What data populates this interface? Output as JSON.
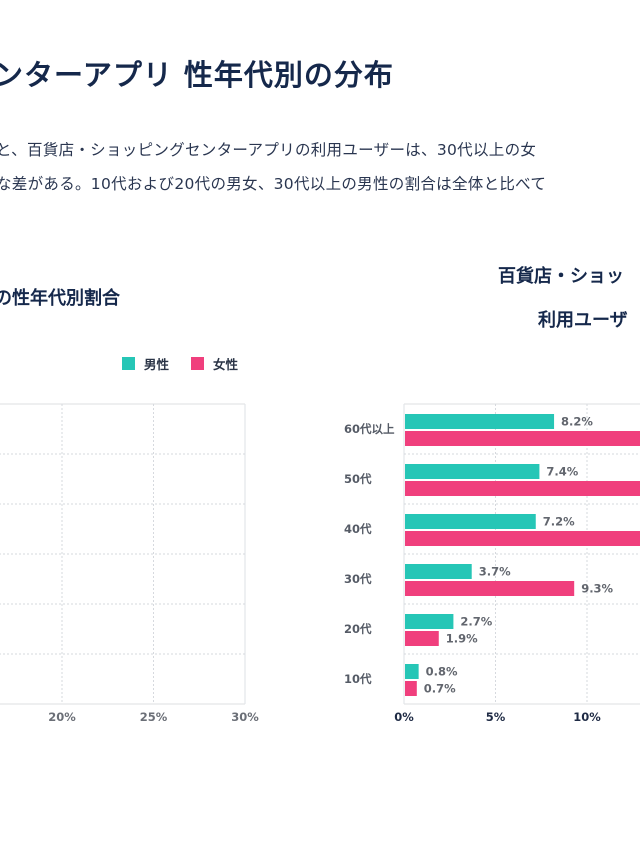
{
  "page": {
    "title": "ンターアプリ 性年代別の分布",
    "description": [
      "と、百貨店・ショッピングセンターアプリの利用ユーザーは、30代以上の女",
      "な差がある。10代および20代の男女、30代以上の男性の割合は全体と比べて"
    ]
  },
  "legend": [
    {
      "label": "男性",
      "color": "#26c6b6"
    },
    {
      "label": "女性",
      "color": "#f03f7d"
    }
  ],
  "colors": {
    "male": "#26c6b6",
    "female": "#f03f7d",
    "title": "#15284b",
    "grid": "#d6d9de"
  },
  "chart_data": [
    {
      "type": "bar",
      "orientation": "horizontal",
      "title": "の性年代別割合",
      "note": "Chart clipped at left edge; bars not visible in screenshot",
      "xlim": [
        0,
        30
      ],
      "x_ticks_visible": [
        "20%",
        "25%",
        "30%"
      ],
      "grid": true,
      "series": [
        {
          "name": "男性",
          "values": null
        },
        {
          "name": "女性",
          "values": null
        }
      ]
    },
    {
      "type": "bar",
      "orientation": "horizontal",
      "title_lines": [
        "百貨店・ショッ",
        "利用ユーザ"
      ],
      "note": "Chart clipped at right edge; female bars for 40代〜60代以上 extend beyond visible area",
      "categories": [
        "60代以上",
        "50代",
        "40代",
        "30代",
        "20代",
        "10代"
      ],
      "x_ticks": [
        "0%",
        "5%",
        "10%"
      ],
      "xlim": [
        0,
        13
      ],
      "grid": true,
      "series": [
        {
          "name": "男性",
          "values": [
            8.2,
            7.4,
            7.2,
            3.7,
            2.7,
            0.8
          ],
          "labels": [
            "8.2%",
            "7.4%",
            "7.2%",
            "3.7%",
            "2.7%",
            "0.8%"
          ]
        },
        {
          "name": "女性",
          "values": [
            null,
            null,
            null,
            9.3,
            1.9,
            0.7
          ],
          "labels": [
            null,
            null,
            null,
            "9.3%",
            "1.9%",
            "0.7%"
          ],
          "clipped": [
            true,
            true,
            true,
            false,
            false,
            false
          ]
        }
      ]
    }
  ]
}
